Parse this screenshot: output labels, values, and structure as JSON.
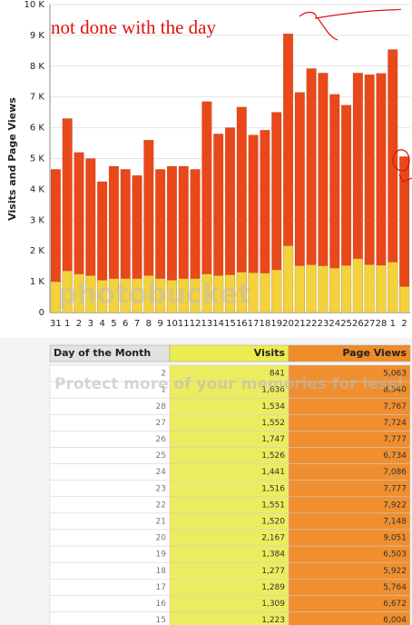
{
  "chart_data": {
    "type": "bar",
    "y_label": "Visits and Page Views",
    "annotation": "not done with the day",
    "watermark": "photobucket",
    "categories": [
      "31",
      "1",
      "2",
      "3",
      "4",
      "5",
      "6",
      "7",
      "8",
      "9",
      "10",
      "11",
      "12",
      "13",
      "14",
      "15",
      "16",
      "17",
      "18",
      "19",
      "20",
      "21",
      "22",
      "23",
      "24",
      "25",
      "26",
      "27",
      "28",
      "1",
      "2"
    ],
    "series": [
      {
        "name": "Page Views",
        "color": "#e8481a",
        "values": [
          4650,
          6300,
          5200,
          5000,
          4250,
          4750,
          4650,
          4450,
          5600,
          4650,
          4750,
          4750,
          4650,
          6850,
          5800,
          6004,
          6672,
          5764,
          5922,
          6503,
          9051,
          7148,
          7922,
          7777,
          7086,
          6734,
          7777,
          7724,
          7767,
          8540,
          5063
        ]
      },
      {
        "name": "Visits",
        "color": "#f4d23c",
        "values": [
          1000,
          1350,
          1250,
          1200,
          1050,
          1100,
          1100,
          1100,
          1200,
          1100,
          1050,
          1100,
          1100,
          1250,
          1200,
          1223,
          1309,
          1289,
          1277,
          1384,
          2167,
          1520,
          1551,
          1516,
          1441,
          1526,
          1747,
          1552,
          1534,
          1636,
          841
        ]
      }
    ],
    "ylim": [
      0,
      10000
    ],
    "yticks": [
      0,
      {
        "value": 1000,
        "label": "1 K"
      },
      {
        "value": 2000,
        "label": "2 K"
      },
      {
        "value": 3000,
        "label": "3 K"
      },
      {
        "value": 4000,
        "label": "4 K"
      },
      {
        "value": 5000,
        "label": "5 K"
      },
      {
        "value": 6000,
        "label": "6 K"
      },
      {
        "value": 7000,
        "label": "7 K"
      },
      {
        "value": 8000,
        "label": "8 K"
      },
      {
        "value": 9000,
        "label": "9 K"
      },
      {
        "value": 10000,
        "label": "10 K"
      }
    ],
    "grid": true
  },
  "table": {
    "watermark": "Protect more of your memories for less!",
    "columns": [
      "Day of the Month",
      "Visits",
      "Page Views"
    ],
    "rows": [
      [
        "2",
        "841",
        "5,063"
      ],
      [
        "1",
        "1,636",
        "8,540"
      ],
      [
        "28",
        "1,534",
        "7,767"
      ],
      [
        "27",
        "1,552",
        "7,724"
      ],
      [
        "26",
        "1,747",
        "7,777"
      ],
      [
        "25",
        "1,526",
        "6,734"
      ],
      [
        "24",
        "1,441",
        "7,086"
      ],
      [
        "23",
        "1,516",
        "7,777"
      ],
      [
        "22",
        "1,551",
        "7,922"
      ],
      [
        "21",
        "1,520",
        "7,148"
      ],
      [
        "20",
        "2,167",
        "9,051"
      ],
      [
        "19",
        "1,384",
        "6,503"
      ],
      [
        "18",
        "1,277",
        "5,922"
      ],
      [
        "17",
        "1,289",
        "5,764"
      ],
      [
        "16",
        "1,309",
        "6,672"
      ],
      [
        "15",
        "1,223",
        "6,004"
      ]
    ]
  }
}
